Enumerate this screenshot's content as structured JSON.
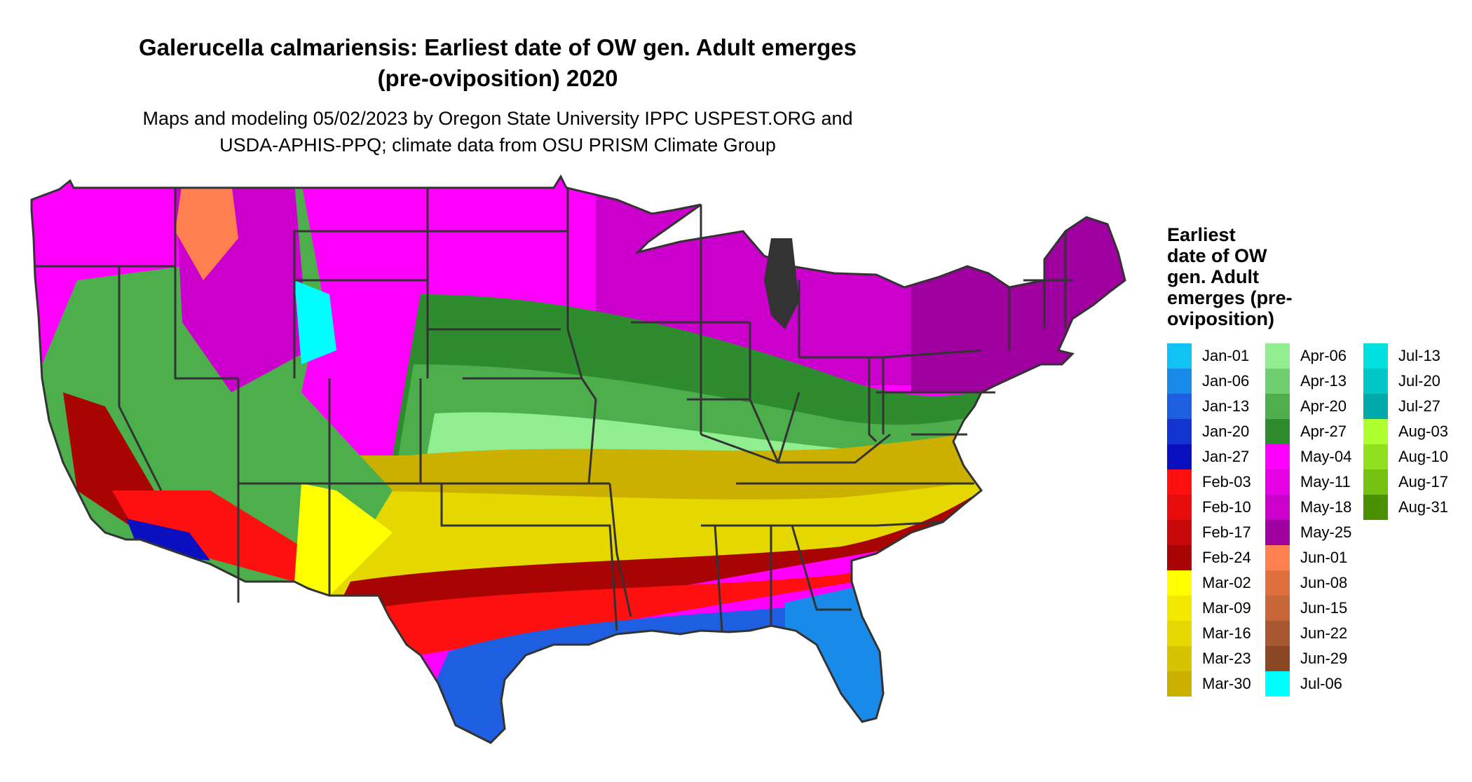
{
  "title_line1": "Galerucella calmariensis: Earliest date of OW gen. Adult emerges",
  "title_line2": "(pre-oviposition) 2020",
  "subtitle_line1": "Maps and modeling 05/02/2023 by Oregon State University IPPC USPEST.ORG and",
  "subtitle_line2": "USDA-APHIS-PPQ; climate data from OSU PRISM Climate Group",
  "legend": {
    "title_lines": [
      "Earliest",
      "date of OW",
      "gen. Adult",
      "emerges (pre-",
      "oviposition)"
    ],
    "items": [
      {
        "label": "Jan-01",
        "color": "#12c2f5"
      },
      {
        "label": "Jan-06",
        "color": "#1a8ae8"
      },
      {
        "label": "Jan-13",
        "color": "#1e5ee0"
      },
      {
        "label": "Jan-20",
        "color": "#1235d0"
      },
      {
        "label": "Jan-27",
        "color": "#0a0fc0"
      },
      {
        "label": "Feb-03",
        "color": "#ff1010"
      },
      {
        "label": "Feb-10",
        "color": "#e80d0d"
      },
      {
        "label": "Feb-17",
        "color": "#c80808"
      },
      {
        "label": "Feb-24",
        "color": "#a80404"
      },
      {
        "label": "Mar-02",
        "color": "#ffff00"
      },
      {
        "label": "Mar-09",
        "color": "#f2e800"
      },
      {
        "label": "Mar-16",
        "color": "#e5d800"
      },
      {
        "label": "Mar-23",
        "color": "#d8c300"
      },
      {
        "label": "Mar-30",
        "color": "#ccb000"
      },
      {
        "label": "Apr-06",
        "color": "#90ee90"
      },
      {
        "label": "Apr-13",
        "color": "#6fcf6f"
      },
      {
        "label": "Apr-20",
        "color": "#4caf4c"
      },
      {
        "label": "Apr-27",
        "color": "#2e8b2e"
      },
      {
        "label": "May-04",
        "color": "#ff00ff"
      },
      {
        "label": "May-11",
        "color": "#e600e6"
      },
      {
        "label": "May-18",
        "color": "#cc00cc"
      },
      {
        "label": "May-25",
        "color": "#a000a0"
      },
      {
        "label": "Jun-01",
        "color": "#ff7f50"
      },
      {
        "label": "Jun-08",
        "color": "#e07040"
      },
      {
        "label": "Jun-15",
        "color": "#c86838"
      },
      {
        "label": "Jun-22",
        "color": "#a85830"
      },
      {
        "label": "Jun-29",
        "color": "#8b4726"
      },
      {
        "label": "Jul-06",
        "color": "#00ffff"
      },
      {
        "label": "Jul-13",
        "color": "#00e0e0"
      },
      {
        "label": "Jul-20",
        "color": "#00c8c8"
      },
      {
        "label": "Jul-27",
        "color": "#00aaaa"
      },
      {
        "label": "Aug-03",
        "color": "#adff2f"
      },
      {
        "label": "Aug-10",
        "color": "#90e020"
      },
      {
        "label": "Aug-17",
        "color": "#76c010"
      },
      {
        "label": "Aug-31",
        "color": "#4a9000"
      }
    ]
  }
}
